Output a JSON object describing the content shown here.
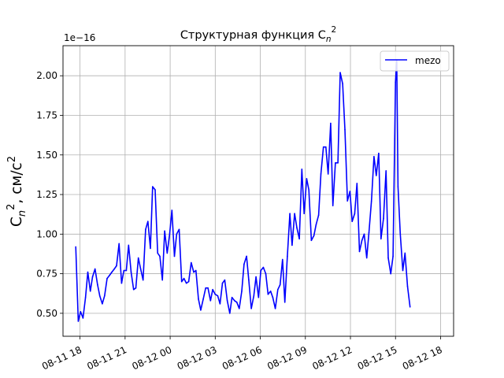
{
  "chart_data": {
    "type": "line",
    "title_main": "Структурная функция C",
    "title_sub": "n",
    "title_sup": "2",
    "ylabel_main": "C",
    "ylabel_sub": "n",
    "ylabel_sup": "2",
    "ylabel_mid": ", см/с",
    "ylabel_sup2": "2",
    "offset_text": "1e−16",
    "y_scale_exponent": -16,
    "grid": true,
    "legend": "top-right",
    "xlim": [
      "2023-08-11 16:52",
      "2023-08-12 18:52"
    ],
    "ylim": [
      0.355,
      2.19
    ],
    "xticks": [
      {
        "t": "2023-08-11 18:00",
        "label": "08-11 18"
      },
      {
        "t": "2023-08-11 21:00",
        "label": "08-11 21"
      },
      {
        "t": "2023-08-12 00:00",
        "label": "08-12 00"
      },
      {
        "t": "2023-08-12 03:00",
        "label": "08-12 03"
      },
      {
        "t": "2023-08-12 06:00",
        "label": "08-12 06"
      },
      {
        "t": "2023-08-12 09:00",
        "label": "08-12 09"
      },
      {
        "t": "2023-08-12 12:00",
        "label": "08-12 12"
      },
      {
        "t": "2023-08-12 15:00",
        "label": "08-12 15"
      },
      {
        "t": "2023-08-12 18:00",
        "label": "08-12 18"
      }
    ],
    "yticks": [
      {
        "v": 0.5,
        "label": "0.50"
      },
      {
        "v": 0.75,
        "label": "0.75"
      },
      {
        "v": 1.0,
        "label": "1.00"
      },
      {
        "v": 1.25,
        "label": "1.25"
      },
      {
        "v": 1.5,
        "label": "1.50"
      },
      {
        "v": 1.75,
        "label": "1.75"
      },
      {
        "v": 2.0,
        "label": "2.00"
      }
    ],
    "series": [
      {
        "name": "mezo",
        "color": "#0000ff",
        "points": [
          [
            "2023-08-11 17:43",
            0.92
          ],
          [
            "2023-08-11 17:53",
            0.45
          ],
          [
            "2023-08-11 18:02",
            0.51
          ],
          [
            "2023-08-11 18:12",
            0.47
          ],
          [
            "2023-08-11 18:22",
            0.6
          ],
          [
            "2023-08-11 18:31",
            0.76
          ],
          [
            "2023-08-11 18:41",
            0.64
          ],
          [
            "2023-08-11 18:50",
            0.73
          ],
          [
            "2023-08-11 19:00",
            0.78
          ],
          [
            "2023-08-11 19:10",
            0.68
          ],
          [
            "2023-08-11 19:19",
            0.61
          ],
          [
            "2023-08-11 19:29",
            0.56
          ],
          [
            "2023-08-11 19:38",
            0.61
          ],
          [
            "2023-08-11 19:48",
            0.72
          ],
          [
            "2023-08-11 19:58",
            0.74
          ],
          [
            "2023-08-11 20:07",
            0.76
          ],
          [
            "2023-08-11 20:17",
            0.78
          ],
          [
            "2023-08-11 20:26",
            0.8
          ],
          [
            "2023-08-11 20:36",
            0.94
          ],
          [
            "2023-08-11 20:46",
            0.69
          ],
          [
            "2023-08-11 20:55",
            0.77
          ],
          [
            "2023-08-11 21:05",
            0.77
          ],
          [
            "2023-08-11 21:14",
            0.93
          ],
          [
            "2023-08-11 21:24",
            0.76
          ],
          [
            "2023-08-11 21:34",
            0.65
          ],
          [
            "2023-08-11 21:43",
            0.66
          ],
          [
            "2023-08-11 21:53",
            0.85
          ],
          [
            "2023-08-11 22:02",
            0.78
          ],
          [
            "2023-08-11 22:12",
            0.71
          ],
          [
            "2023-08-11 22:22",
            1.03
          ],
          [
            "2023-08-11 22:31",
            1.08
          ],
          [
            "2023-08-11 22:41",
            0.91
          ],
          [
            "2023-08-11 22:50",
            1.3
          ],
          [
            "2023-08-11 23:00",
            1.28
          ],
          [
            "2023-08-11 23:10",
            0.88
          ],
          [
            "2023-08-11 23:19",
            0.86
          ],
          [
            "2023-08-11 23:29",
            0.71
          ],
          [
            "2023-08-11 23:38",
            1.02
          ],
          [
            "2023-08-11 23:48",
            0.88
          ],
          [
            "2023-08-11 23:58",
            1.0
          ],
          [
            "2023-08-12 00:07",
            1.15
          ],
          [
            "2023-08-12 00:17",
            0.86
          ],
          [
            "2023-08-12 00:26",
            1.0
          ],
          [
            "2023-08-12 00:36",
            1.03
          ],
          [
            "2023-08-12 00:46",
            0.7
          ],
          [
            "2023-08-12 00:55",
            0.72
          ],
          [
            "2023-08-12 01:05",
            0.69
          ],
          [
            "2023-08-12 01:14",
            0.7
          ],
          [
            "2023-08-12 01:24",
            0.82
          ],
          [
            "2023-08-12 01:34",
            0.76
          ],
          [
            "2023-08-12 01:43",
            0.77
          ],
          [
            "2023-08-12 01:53",
            0.59
          ],
          [
            "2023-08-12 02:02",
            0.52
          ],
          [
            "2023-08-12 02:12",
            0.59
          ],
          [
            "2023-08-12 02:22",
            0.66
          ],
          [
            "2023-08-12 02:31",
            0.66
          ],
          [
            "2023-08-12 02:41",
            0.58
          ],
          [
            "2023-08-12 02:50",
            0.65
          ],
          [
            "2023-08-12 03:00",
            0.62
          ],
          [
            "2023-08-12 03:10",
            0.61
          ],
          [
            "2023-08-12 03:19",
            0.56
          ],
          [
            "2023-08-12 03:29",
            0.69
          ],
          [
            "2023-08-12 03:38",
            0.71
          ],
          [
            "2023-08-12 03:48",
            0.58
          ],
          [
            "2023-08-12 03:58",
            0.5
          ],
          [
            "2023-08-12 04:07",
            0.6
          ],
          [
            "2023-08-12 04:17",
            0.58
          ],
          [
            "2023-08-12 04:26",
            0.57
          ],
          [
            "2023-08-12 04:36",
            0.53
          ],
          [
            "2023-08-12 04:46",
            0.64
          ],
          [
            "2023-08-12 04:55",
            0.81
          ],
          [
            "2023-08-12 05:05",
            0.86
          ],
          [
            "2023-08-12 05:14",
            0.71
          ],
          [
            "2023-08-12 05:24",
            0.53
          ],
          [
            "2023-08-12 05:34",
            0.61
          ],
          [
            "2023-08-12 05:43",
            0.73
          ],
          [
            "2023-08-12 05:53",
            0.6
          ],
          [
            "2023-08-12 06:02",
            0.77
          ],
          [
            "2023-08-12 06:12",
            0.79
          ],
          [
            "2023-08-12 06:22",
            0.75
          ],
          [
            "2023-08-12 06:31",
            0.62
          ],
          [
            "2023-08-12 06:41",
            0.64
          ],
          [
            "2023-08-12 06:50",
            0.6
          ],
          [
            "2023-08-12 07:00",
            0.53
          ],
          [
            "2023-08-12 07:10",
            0.65
          ],
          [
            "2023-08-12 07:19",
            0.68
          ],
          [
            "2023-08-12 07:29",
            0.84
          ],
          [
            "2023-08-12 07:38",
            0.57
          ],
          [
            "2023-08-12 07:48",
            0.86
          ],
          [
            "2023-08-12 07:58",
            1.13
          ],
          [
            "2023-08-12 08:07",
            0.93
          ],
          [
            "2023-08-12 08:17",
            1.13
          ],
          [
            "2023-08-12 08:26",
            1.04
          ],
          [
            "2023-08-12 08:36",
            0.97
          ],
          [
            "2023-08-12 08:46",
            1.41
          ],
          [
            "2023-08-12 08:55",
            1.13
          ],
          [
            "2023-08-12 09:05",
            1.35
          ],
          [
            "2023-08-12 09:14",
            1.28
          ],
          [
            "2023-08-12 09:24",
            0.96
          ],
          [
            "2023-08-12 09:34",
            0.99
          ],
          [
            "2023-08-12 09:43",
            1.06
          ],
          [
            "2023-08-12 09:53",
            1.12
          ],
          [
            "2023-08-12 10:02",
            1.38
          ],
          [
            "2023-08-12 10:12",
            1.55
          ],
          [
            "2023-08-12 10:22",
            1.55
          ],
          [
            "2023-08-12 10:31",
            1.38
          ],
          [
            "2023-08-12 10:41",
            1.7
          ],
          [
            "2023-08-12 10:50",
            1.18
          ],
          [
            "2023-08-12 11:00",
            1.45
          ],
          [
            "2023-08-12 11:10",
            1.45
          ],
          [
            "2023-08-12 11:19",
            2.02
          ],
          [
            "2023-08-12 11:29",
            1.95
          ],
          [
            "2023-08-12 11:38",
            1.66
          ],
          [
            "2023-08-12 11:48",
            1.21
          ],
          [
            "2023-08-12 11:58",
            1.27
          ],
          [
            "2023-08-12 12:07",
            1.08
          ],
          [
            "2023-08-12 12:17",
            1.13
          ],
          [
            "2023-08-12 12:26",
            1.32
          ],
          [
            "2023-08-12 12:36",
            0.89
          ],
          [
            "2023-08-12 12:46",
            0.96
          ],
          [
            "2023-08-12 12:55",
            1.0
          ],
          [
            "2023-08-12 13:05",
            0.85
          ],
          [
            "2023-08-12 13:14",
            1.01
          ],
          [
            "2023-08-12 13:24",
            1.21
          ],
          [
            "2023-08-12 13:34",
            1.49
          ],
          [
            "2023-08-12 13:43",
            1.37
          ],
          [
            "2023-08-12 13:53",
            1.51
          ],
          [
            "2023-08-12 14:02",
            0.97
          ],
          [
            "2023-08-12 14:12",
            1.1
          ],
          [
            "2023-08-12 14:22",
            1.4
          ],
          [
            "2023-08-12 14:31",
            0.85
          ],
          [
            "2023-08-12 14:41",
            0.75
          ],
          [
            "2023-08-12 14:50",
            0.86
          ],
          [
            "2023-08-12 15:00",
            1.96
          ],
          [
            "2023-08-12 15:05",
            2.1
          ],
          [
            "2023-08-12 15:10",
            1.3
          ],
          [
            "2023-08-12 15:19",
            1.0
          ],
          [
            "2023-08-12 15:29",
            0.77
          ],
          [
            "2023-08-12 15:38",
            0.88
          ],
          [
            "2023-08-12 15:48",
            0.67
          ],
          [
            "2023-08-12 15:58",
            0.54
          ]
        ]
      }
    ]
  }
}
